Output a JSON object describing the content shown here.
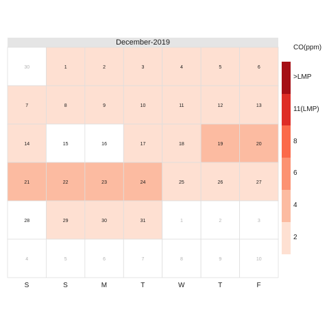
{
  "chart_data": {
    "type": "heatmap",
    "title": "December-2019",
    "weekday_labels": [
      "S",
      "S",
      "M",
      "T",
      "W",
      "T",
      "F"
    ],
    "legend": {
      "title": "CO(ppm)",
      "bins": [
        {
          "label": "2",
          "color": "#fee0d2"
        },
        {
          "label": "4",
          "color": "#fcbba1"
        },
        {
          "label": "6",
          "color": "#fc9272"
        },
        {
          "label": "8",
          "color": "#fb6a4a"
        },
        {
          "label": "11(LMP)",
          "color": "#de2d26"
        },
        {
          "label": ">LMP",
          "color": "#a50f15"
        }
      ]
    },
    "grid": [
      [
        {
          "day": "30",
          "bin": -1,
          "month": "prev"
        },
        {
          "day": "1",
          "bin": 0
        },
        {
          "day": "2",
          "bin": 0
        },
        {
          "day": "3",
          "bin": 0
        },
        {
          "day": "4",
          "bin": 0
        },
        {
          "day": "5",
          "bin": 0
        },
        {
          "day": "6",
          "bin": 0
        }
      ],
      [
        {
          "day": "7",
          "bin": 0
        },
        {
          "day": "8",
          "bin": 0
        },
        {
          "day": "9",
          "bin": 0
        },
        {
          "day": "10",
          "bin": 0
        },
        {
          "day": "11",
          "bin": 0
        },
        {
          "day": "12",
          "bin": 0
        },
        {
          "day": "13",
          "bin": 0
        }
      ],
      [
        {
          "day": "14",
          "bin": 0
        },
        {
          "day": "15",
          "bin": -1
        },
        {
          "day": "16",
          "bin": -1
        },
        {
          "day": "17",
          "bin": 0
        },
        {
          "day": "18",
          "bin": 0
        },
        {
          "day": "19",
          "bin": 1
        },
        {
          "day": "20",
          "bin": 1
        }
      ],
      [
        {
          "day": "21",
          "bin": 1
        },
        {
          "day": "22",
          "bin": 1
        },
        {
          "day": "23",
          "bin": 1
        },
        {
          "day": "24",
          "bin": 1
        },
        {
          "day": "25",
          "bin": 0
        },
        {
          "day": "26",
          "bin": 0
        },
        {
          "day": "27",
          "bin": 0
        }
      ],
      [
        {
          "day": "28",
          "bin": -1
        },
        {
          "day": "29",
          "bin": 0
        },
        {
          "day": "30",
          "bin": 0
        },
        {
          "day": "31",
          "bin": 0
        },
        {
          "day": "1",
          "bin": -1,
          "month": "next"
        },
        {
          "day": "2",
          "bin": -1,
          "month": "next"
        },
        {
          "day": "3",
          "bin": -1,
          "month": "next"
        }
      ],
      [
        {
          "day": "4",
          "bin": -1,
          "month": "next"
        },
        {
          "day": "5",
          "bin": -1,
          "month": "next"
        },
        {
          "day": "6",
          "bin": -1,
          "month": "next"
        },
        {
          "day": "7",
          "bin": -1,
          "month": "next"
        },
        {
          "day": "8",
          "bin": -1,
          "month": "next"
        },
        {
          "day": "9",
          "bin": -1,
          "month": "next"
        },
        {
          "day": "10",
          "bin": -1,
          "month": "next"
        }
      ]
    ]
  }
}
